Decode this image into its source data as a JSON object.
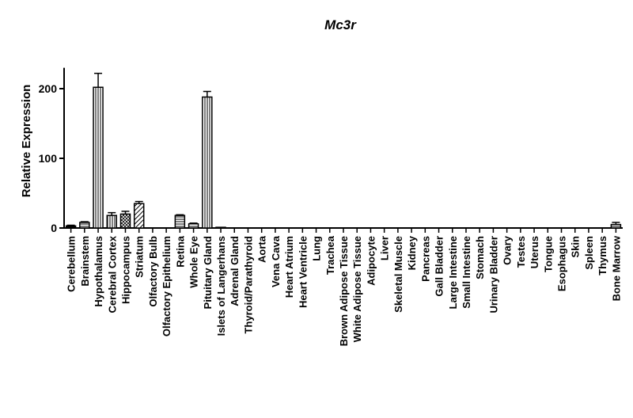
{
  "chart_data": {
    "type": "bar",
    "title": "Mc3r",
    "xlabel": "",
    "ylabel": "Relative Expression",
    "ylim": [
      0,
      230
    ],
    "yticks": [
      0,
      100,
      200
    ],
    "grid": false,
    "legend": "none",
    "categories": [
      "Cerebellum",
      "Brainstem",
      "Hypothalamus",
      "Cerebral Cortex",
      "Hippocampus",
      "Striatum",
      "Olfactory Bulb",
      "Olfactory Epithelium",
      "Retina",
      "Whole Eye",
      "Pituitary Gland",
      "Islets of Langerhans",
      "Adrenal Gland",
      "Thyroid/Parathyroid",
      "Aorta",
      "Vena Cava",
      "Heart Atrium",
      "Heart Ventricle",
      "Lung",
      "Trachea",
      "Brown Adipose Tissue",
      "White Adipose Tissue",
      "Adipocyte",
      "Liver",
      "Skeletal Muscle",
      "Kidney",
      "Pancreas",
      "Gall Bladder",
      "Large Intestine",
      "Small Intestine",
      "Stomach",
      "Urinary Bladder",
      "Ovary",
      "Testes",
      "Uterus",
      "Tongue",
      "Esophagus",
      "Skin",
      "Spleen",
      "Thymus",
      "Bone Marrow"
    ],
    "values": [
      3,
      8,
      202,
      18,
      20,
      35,
      0,
      0,
      18,
      6,
      188,
      1,
      0,
      0,
      0,
      0,
      0,
      0,
      0,
      0,
      0,
      0,
      0,
      0,
      0,
      0,
      0,
      0,
      0,
      0,
      0,
      0,
      0,
      0,
      0,
      0,
      0,
      0,
      0,
      0,
      5
    ],
    "errors": [
      1,
      1,
      20,
      4,
      4,
      3,
      0,
      0,
      1,
      1,
      8,
      0,
      0,
      0,
      0,
      0,
      0,
      0,
      0,
      0,
      0,
      0,
      0,
      0,
      0,
      0,
      0,
      0,
      0,
      0,
      0,
      0,
      0,
      0,
      0,
      0,
      0,
      0,
      0,
      0,
      3
    ],
    "patterns": [
      "solid",
      "hstripe",
      "vstripe",
      "vstripe",
      "dhatch",
      "diag",
      "none",
      "none",
      "hstripe",
      "hstripe",
      "vstripe",
      "none",
      "none",
      "none",
      "none",
      "none",
      "none",
      "none",
      "none",
      "none",
      "none",
      "none",
      "none",
      "none",
      "none",
      "none",
      "none",
      "none",
      "none",
      "none",
      "none",
      "none",
      "none",
      "none",
      "none",
      "none",
      "none",
      "none",
      "none",
      "none",
      "hstripe"
    ]
  }
}
